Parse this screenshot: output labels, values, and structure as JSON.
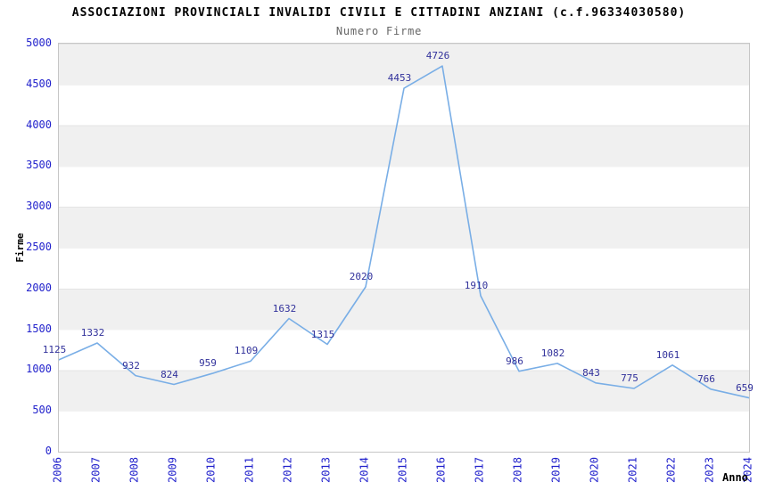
{
  "chart_data": {
    "type": "line",
    "title": "ASSOCIAZIONI PROVINCIALI INVALIDI CIVILI E CITTADINI ANZIANI (c.f.96334030580)",
    "subtitle": "Numero Firme",
    "xlabel": "Anno",
    "ylabel": "Firme",
    "x": [
      "2006",
      "2007",
      "2008",
      "2009",
      "2010",
      "2011",
      "2012",
      "2013",
      "2014",
      "2015",
      "2016",
      "2017",
      "2018",
      "2019",
      "2020",
      "2021",
      "2022",
      "2023",
      "2024"
    ],
    "values": [
      1125,
      1332,
      932,
      824,
      959,
      1109,
      1632,
      1315,
      2020,
      4453,
      4726,
      1910,
      986,
      1082,
      843,
      775,
      1061,
      766,
      659
    ],
    "ylim": [
      0,
      5000
    ],
    "yticks": [
      0,
      500,
      1000,
      1500,
      2000,
      2500,
      3000,
      3500,
      4000,
      4500,
      5000
    ],
    "grid": "alternating-horizontal-bands",
    "legend": "none",
    "point_labels_visible": true,
    "colors": {
      "line": "#79aee6",
      "point_label": "#31319b",
      "tick_label": "#2222cc",
      "band_gray": "#f0f0f0",
      "band_white": "#ffffff",
      "plot_border": "#c6c6c6",
      "title": "#000000",
      "subtitle": "#666666",
      "axis_title": "#000000"
    }
  }
}
